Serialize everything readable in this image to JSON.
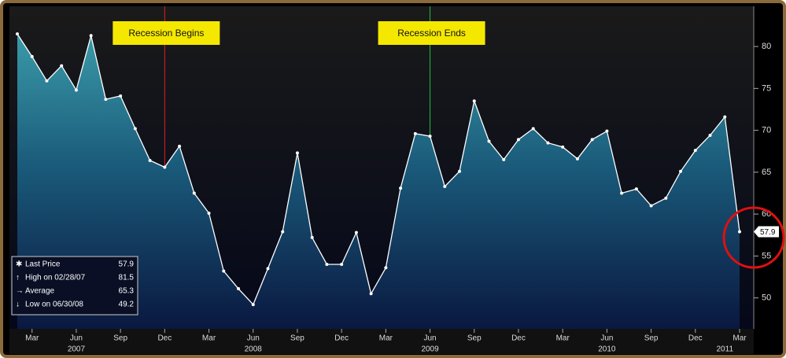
{
  "chart_data": {
    "type": "area",
    "x": [
      "2007-02",
      "2007-03",
      "2007-04",
      "2007-05",
      "2007-06",
      "2007-07",
      "2007-08",
      "2007-09",
      "2007-10",
      "2007-11",
      "2007-12",
      "2008-01",
      "2008-02",
      "2008-03",
      "2008-04",
      "2008-05",
      "2008-06",
      "2008-07",
      "2008-08",
      "2008-09",
      "2008-10",
      "2008-11",
      "2008-12",
      "2009-01",
      "2009-02",
      "2009-03",
      "2009-04",
      "2009-05",
      "2009-06",
      "2009-07",
      "2009-08",
      "2009-09",
      "2009-10",
      "2009-11",
      "2009-12",
      "2010-01",
      "2010-02",
      "2010-03",
      "2010-04",
      "2010-05",
      "2010-06",
      "2010-07",
      "2010-08",
      "2010-09",
      "2010-10",
      "2010-11",
      "2010-12",
      "2011-01",
      "2011-02",
      "2011-03"
    ],
    "series": [
      {
        "color": "#ffffff",
        "values": [
          81.5,
          78.8,
          75.9,
          77.7,
          74.8,
          81.3,
          73.7,
          74.1,
          70.2,
          66.4,
          65.6,
          68.1,
          62.5,
          60.1,
          53.2,
          51.1,
          49.2,
          53.5,
          57.9,
          67.3,
          57.2,
          54.0,
          54.0,
          57.8,
          50.5,
          53.6,
          63.1,
          69.6,
          69.3,
          63.3,
          65.1,
          73.5,
          68.7,
          66.5,
          68.9,
          70.2,
          68.5,
          68.0,
          66.6,
          68.9,
          69.9,
          62.5,
          63.0,
          61.0,
          61.9,
          65.1,
          67.6,
          69.4,
          71.6,
          57.9
        ]
      }
    ],
    "ylim": [
      46.3,
      84.8
    ],
    "yticks": [
      50,
      55,
      60,
      65,
      70,
      75,
      80
    ],
    "xticks": [
      {
        "value": "2007-03",
        "label": "Mar"
      },
      {
        "value": "2007-06",
        "label": "Jun"
      },
      {
        "value": "2007-09",
        "label": "Sep"
      },
      {
        "value": "2007-12",
        "label": "Dec"
      },
      {
        "value": "2008-03",
        "label": "Mar"
      },
      {
        "value": "2008-06",
        "label": "Jun"
      },
      {
        "value": "2008-09",
        "label": "Sep"
      },
      {
        "value": "2008-12",
        "label": "Dec"
      },
      {
        "value": "2009-03",
        "label": "Mar"
      },
      {
        "value": "2009-06",
        "label": "Jun"
      },
      {
        "value": "2009-09",
        "label": "Sep"
      },
      {
        "value": "2009-12",
        "label": "Dec"
      },
      {
        "value": "2010-03",
        "label": "Mar"
      },
      {
        "value": "2010-06",
        "label": "Jun"
      },
      {
        "value": "2010-09",
        "label": "Sep"
      },
      {
        "value": "2010-12",
        "label": "Dec"
      },
      {
        "value": "2011-03",
        "label": "Mar"
      }
    ],
    "year_labels": [
      {
        "value": "2007-06",
        "label": "2007"
      },
      {
        "value": "2008-06",
        "label": "2008"
      },
      {
        "value": "2009-06",
        "label": "2009"
      },
      {
        "value": "2010-06",
        "label": "2010"
      },
      {
        "value": "2011-02",
        "label": "2011"
      }
    ],
    "markers": [
      {
        "x": "2007-12",
        "label": "Recession Begins",
        "color": "#e02020"
      },
      {
        "x": "2009-06",
        "label": "Recession Ends",
        "color": "#20c040"
      }
    ],
    "stats": [
      {
        "label": "Last Price",
        "value": 57.9
      },
      {
        "label": "High on 02/28/07",
        "value": 81.5
      },
      {
        "label": "Average",
        "value": 65.3
      },
      {
        "label": "Low on 06/30/08",
        "value": 49.2
      }
    ]
  }
}
